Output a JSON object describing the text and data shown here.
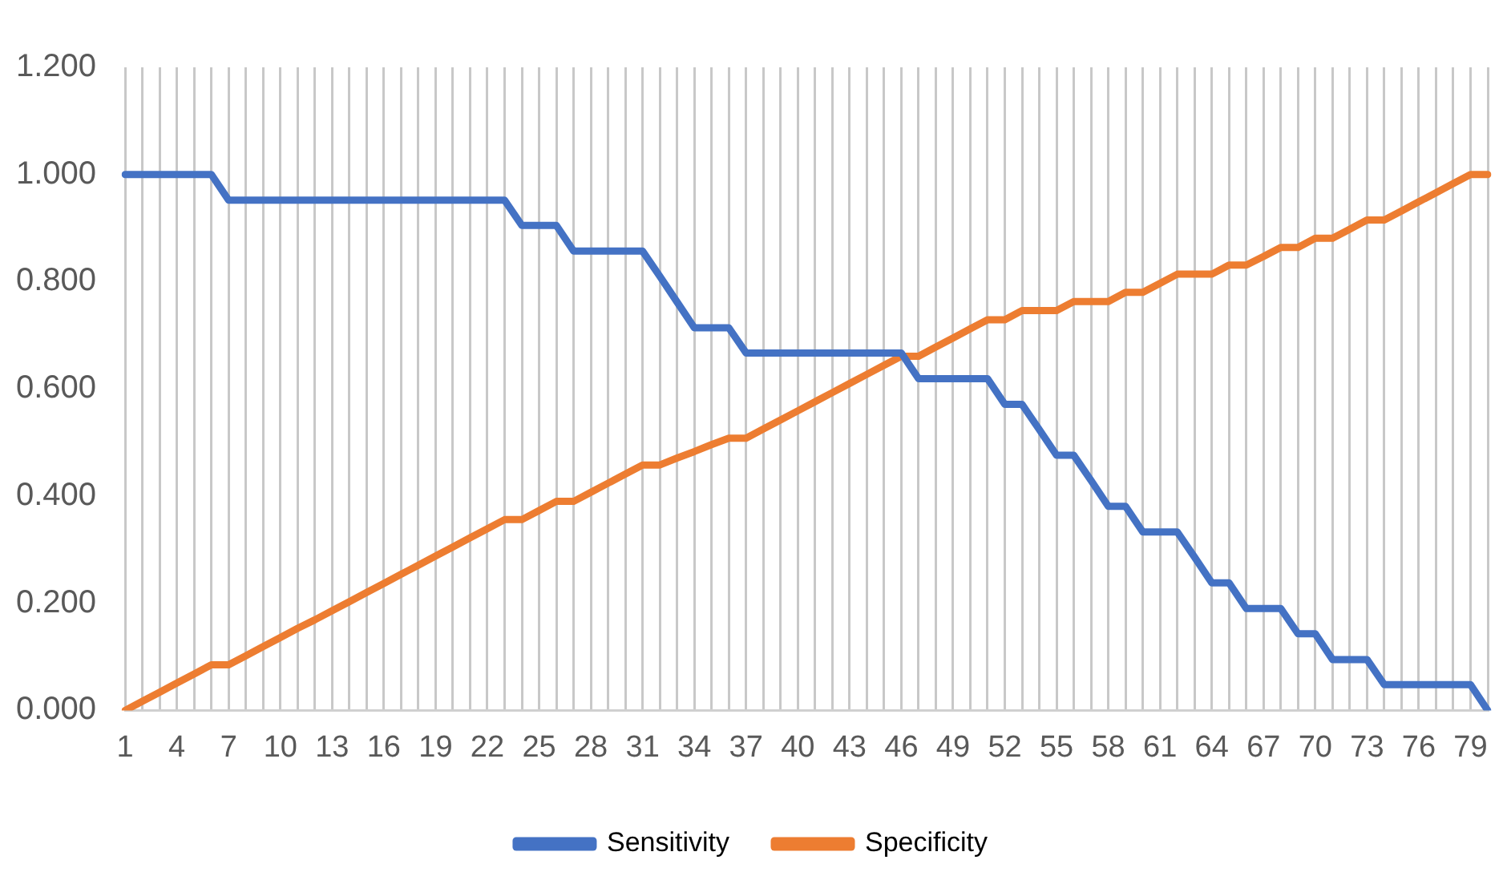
{
  "chart_data": {
    "type": "line",
    "categories": [
      "1",
      null,
      null,
      "4",
      null,
      null,
      "7",
      null,
      null,
      "10",
      null,
      null,
      "13",
      null,
      null,
      "16",
      null,
      null,
      "19",
      null,
      null,
      "22",
      null,
      null,
      "25",
      null,
      null,
      "28",
      null,
      null,
      "31",
      null,
      null,
      "34",
      null,
      null,
      "37",
      null,
      null,
      "40",
      null,
      null,
      "43",
      null,
      null,
      "46",
      null,
      null,
      "49",
      null,
      null,
      "52",
      null,
      null,
      "55",
      null,
      null,
      "58",
      null,
      null,
      "61",
      null,
      null,
      "64",
      null,
      null,
      "67",
      null,
      null,
      "70",
      null,
      null,
      "73",
      null,
      null,
      "76",
      null,
      null,
      "79",
      null
    ],
    "series": [
      {
        "name": "Sensitivity",
        "color": "#4472c4",
        "values": [
          1,
          1,
          1,
          1,
          1,
          1,
          0.952,
          0.952,
          0.952,
          0.952,
          0.952,
          0.952,
          0.952,
          0.952,
          0.952,
          0.952,
          0.952,
          0.952,
          0.952,
          0.952,
          0.952,
          0.952,
          0.952,
          0.905,
          0.905,
          0.905,
          0.857,
          0.857,
          0.857,
          0.857,
          0.857,
          0.81,
          0.762,
          0.714,
          0.714,
          0.714,
          0.667,
          0.667,
          0.667,
          0.667,
          0.667,
          0.667,
          0.667,
          0.667,
          0.667,
          0.667,
          0.619,
          0.619,
          0.619,
          0.619,
          0.619,
          0.571,
          0.571,
          0.524,
          0.476,
          0.476,
          0.429,
          0.381,
          0.381,
          0.333,
          0.333,
          0.333,
          0.286,
          0.238,
          0.238,
          0.19,
          0.19,
          0.19,
          0.143,
          0.143,
          0.095,
          0.095,
          0.095,
          0.048,
          0.048,
          0.048,
          0.048,
          0.048,
          0.048,
          0
        ]
      },
      {
        "name": "Specificity",
        "color": "#ed7d31",
        "values": [
          0,
          0.017,
          0.034,
          0.051,
          0.068,
          0.085,
          0.085,
          0.102,
          0.119,
          0.136,
          0.153,
          0.169,
          0.186,
          0.203,
          0.22,
          0.237,
          0.254,
          0.271,
          0.288,
          0.305,
          0.322,
          0.339,
          0.356,
          0.356,
          0.373,
          0.39,
          0.39,
          0.407,
          0.424,
          0.441,
          0.458,
          0.458,
          0.471,
          0.483,
          0.496,
          0.508,
          0.508,
          0.525,
          0.542,
          0.559,
          0.576,
          0.593,
          0.61,
          0.627,
          0.644,
          0.661,
          0.661,
          0.678,
          0.695,
          0.712,
          0.729,
          0.729,
          0.746,
          0.746,
          0.746,
          0.763,
          0.763,
          0.763,
          0.78,
          0.78,
          0.797,
          0.814,
          0.814,
          0.814,
          0.831,
          0.831,
          0.847,
          0.864,
          0.864,
          0.881,
          0.881,
          0.898,
          0.915,
          0.915,
          0.932,
          0.949,
          0.966,
          0.983,
          1,
          1
        ]
      }
    ],
    "ylim": [
      0,
      1.2
    ],
    "yticks": [
      {
        "value": 0,
        "label": "0.000"
      },
      {
        "value": 0.2,
        "label": "0.200"
      },
      {
        "value": 0.4,
        "label": "0.400"
      },
      {
        "value": 0.6,
        "label": "0.600"
      },
      {
        "value": 0.8,
        "label": "0.800"
      },
      {
        "value": 1,
        "label": "1.000"
      },
      {
        "value": 1.2,
        "label": "1.200"
      }
    ],
    "grid": "x",
    "legend": "bottom",
    "marker": "none",
    "line_style": "solid"
  }
}
